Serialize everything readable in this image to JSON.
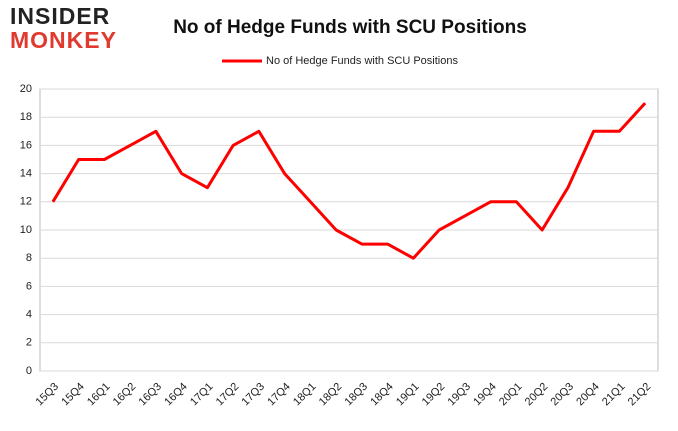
{
  "logo": {
    "line1": "INSIDER",
    "line2": "MONKEY"
  },
  "chart_data": {
    "type": "line",
    "title": "No of Hedge Funds with SCU Positions",
    "categories": [
      "15Q3",
      "15Q4",
      "16Q1",
      "16Q2",
      "16Q3",
      "16Q4",
      "17Q1",
      "17Q2",
      "17Q3",
      "17Q4",
      "18Q1",
      "18Q2",
      "18Q3",
      "18Q4",
      "19Q1",
      "19Q2",
      "19Q3",
      "19Q4",
      "20Q1",
      "20Q2",
      "20Q3",
      "20Q4",
      "21Q1",
      "21Q2"
    ],
    "series": [
      {
        "name": "No of Hedge Funds with SCU Positions",
        "color": "#ff0000",
        "values": [
          12,
          15,
          15,
          16,
          17,
          14,
          13,
          16,
          17,
          14,
          12,
          10,
          9,
          9,
          8,
          10,
          11,
          12,
          12,
          10,
          13,
          17,
          17,
          19
        ]
      }
    ],
    "ylim": [
      0,
      20
    ],
    "yticks": [
      0,
      2,
      4,
      6,
      8,
      10,
      12,
      14,
      16,
      18,
      20
    ],
    "grid": true,
    "legend": "top"
  }
}
